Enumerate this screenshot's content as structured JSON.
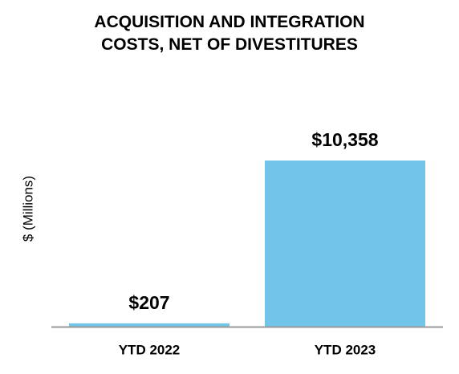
{
  "chart_data": {
    "type": "bar",
    "title": "ACQUISITION AND INTEGRATION COSTS, NET OF DIVESTITURES",
    "y_label": "$ (Millions)",
    "categories": [
      "YTD 2022",
      "YTD 2023"
    ],
    "values": [
      207,
      10358
    ],
    "value_labels": [
      "$207",
      "$10,358"
    ],
    "color": "#72c5e8"
  }
}
